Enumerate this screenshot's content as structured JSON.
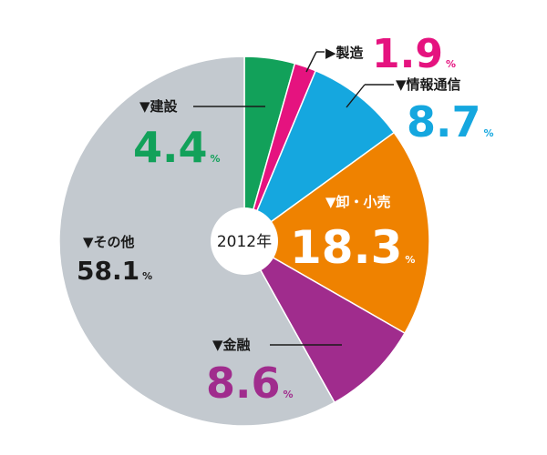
{
  "chart_data": {
    "type": "pie",
    "center_label": "2012年",
    "unit": "%",
    "slices": [
      {
        "name": "建設",
        "value": 4.4,
        "color": "#12a15a"
      },
      {
        "name": "製造",
        "value": 1.9,
        "color": "#e5137f"
      },
      {
        "name": "情報通信",
        "value": 8.7,
        "color": "#15a7df"
      },
      {
        "name": "卸・小売",
        "value": 18.3,
        "color": "#ef8200"
      },
      {
        "name": "金融",
        "value": 8.6,
        "color": "#a02c8d"
      },
      {
        "name": "その他",
        "value": 58.1,
        "color": "#c3c9cf"
      }
    ],
    "start_angle": "top (12 o'clock)",
    "direction": "clockwise"
  },
  "labels": {
    "marker": "▼",
    "marker_right": "▶",
    "construction_name": "建設",
    "construction_value": "4.4",
    "manufacturing_name": "製造",
    "manufacturing_value": "1.9",
    "ict_name": "情報通信",
    "ict_value": "8.7",
    "retail_name": "卸・小売",
    "retail_value": "18.3",
    "finance_name": "金融",
    "finance_value": "8.6",
    "other_name": "その他",
    "other_value": "58.1",
    "percent": "%"
  }
}
